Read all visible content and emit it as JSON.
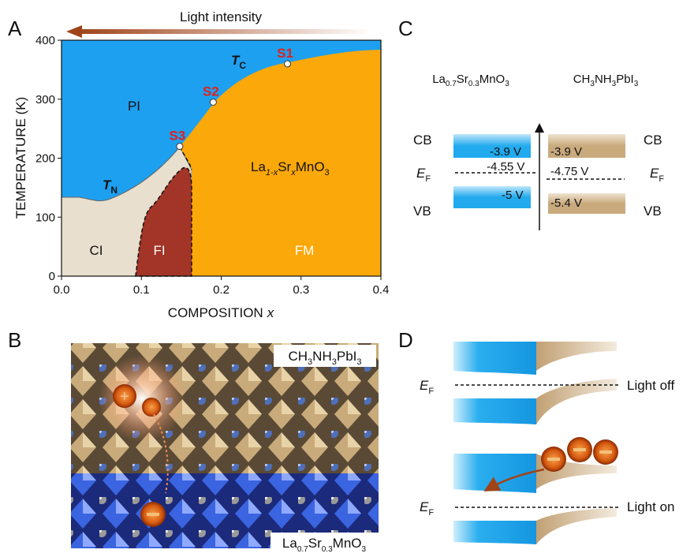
{
  "panel_letters": [
    "A",
    "B",
    "C",
    "D"
  ],
  "panel_a": {
    "top_arrow_label": "Light intensity",
    "xlim": [
      0,
      0.4
    ],
    "ylim": [
      0,
      400
    ],
    "xticks": [
      {
        "value": 0,
        "label": "0.0"
      },
      0.1,
      0.2,
      0.3,
      0.4
    ],
    "yticks": [
      0,
      100,
      200,
      300,
      400
    ],
    "xlabel_parts": [
      "COMPOSITION",
      "x"
    ],
    "ylabel": "TEMPERATURE (K)",
    "points": [
      {
        "label": "S1",
        "x": 0.283,
        "y": 360
      },
      {
        "label": "S2",
        "x": 0.19,
        "y": 295
      },
      {
        "label": "S3",
        "x": 0.148,
        "y": 220
      }
    ],
    "tc_parts": [
      "T",
      "C"
    ],
    "tn_parts": [
      "T",
      "N"
    ],
    "region_pi": "PI",
    "region_ci": "CI",
    "region_fi": "FI",
    "region_fm": "FM",
    "compound_parts": [
      "La",
      "1-x",
      "Sr",
      "x",
      "MnO",
      "3"
    ]
  },
  "panel_b": {
    "top_label_parts": [
      "CH",
      "3",
      "NH",
      "3",
      "PbI",
      "3"
    ],
    "bottom_label_parts": [
      "La",
      "0.7",
      "Sr",
      "0.3",
      "MnO",
      "3"
    ]
  },
  "panel_c": {
    "left_material_parts": [
      "La",
      "0.7",
      "Sr",
      "0.3",
      "MnO",
      "3"
    ],
    "right_material_parts": [
      "CH",
      "3",
      "NH",
      "3",
      "PbI",
      "3"
    ],
    "cb": "CB",
    "vb": "VB",
    "ef_parts": [
      "E",
      "F"
    ],
    "left_values": [
      "-3.9 V",
      "-4.55 V",
      "-5 V"
    ],
    "right_values": [
      "-3.9 V",
      "-4.75 V",
      "-5.4 V"
    ]
  },
  "panel_d": {
    "ef_parts": [
      "E",
      "F"
    ],
    "light_off": "Light off",
    "light_on": "Light on"
  }
}
